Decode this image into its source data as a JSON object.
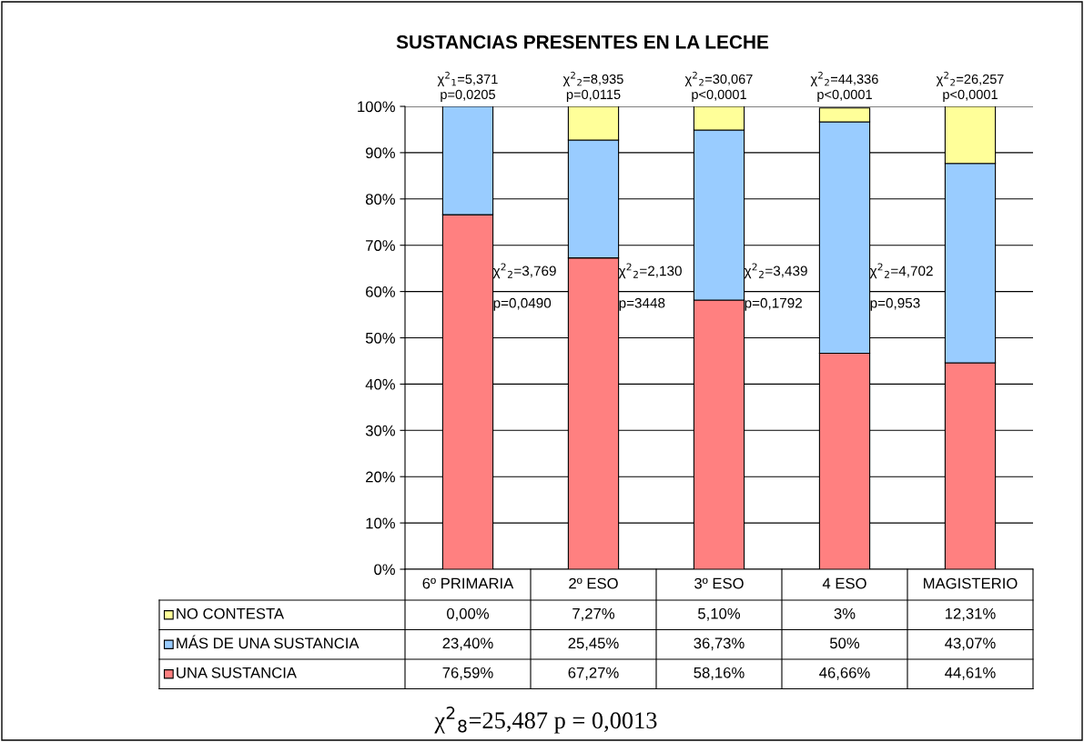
{
  "chart_data": {
    "type": "bar",
    "stacked": true,
    "title": "SUSTANCIAS PRESENTES EN LA LECHE",
    "categories": [
      "6º PRIMARIA",
      "2º ESO",
      "3º ESO",
      "4 ESO",
      "MAGISTERIO"
    ],
    "series": [
      {
        "name": "UNA SUSTANCIA",
        "color": "#ff8080",
        "values": [
          76.59,
          67.27,
          58.16,
          46.66,
          44.61
        ],
        "value_labels": [
          "76,59%",
          "67,27%",
          "58,16%",
          "46,66%",
          "44,61%"
        ]
      },
      {
        "name": "MÁS DE UNA SUSTANCIA",
        "color": "#99ccff",
        "values": [
          23.4,
          25.45,
          36.73,
          50,
          43.07
        ],
        "value_labels": [
          "23,40%",
          "25,45%",
          "36,73%",
          "50%",
          "43,07%"
        ]
      },
      {
        "name": "NO CONTESTA",
        "color": "#ffff99",
        "values": [
          0,
          7.27,
          5.1,
          3,
          12.31
        ],
        "value_labels": [
          "0,00%",
          "7,27%",
          "5,10%",
          "3%",
          "12,31%"
        ]
      }
    ],
    "ylim": [
      0,
      100
    ],
    "yticks": [
      {
        "value": 0,
        "label": "0%"
      },
      {
        "value": 10,
        "label": "10%"
      },
      {
        "value": 20,
        "label": "20%"
      },
      {
        "value": 30,
        "label": "30%"
      },
      {
        "value": 40,
        "label": "40%"
      },
      {
        "value": 50,
        "label": "50%"
      },
      {
        "value": 60,
        "label": "60%"
      },
      {
        "value": 70,
        "label": "70%"
      },
      {
        "value": 80,
        "label": "80%"
      },
      {
        "value": 90,
        "label": "90%"
      },
      {
        "value": 100,
        "label": "100%"
      }
    ],
    "grid": "y",
    "legend": "bottom left",
    "annotations": [
      "χ$^{2}$$_{1}$=5,371\np=0,0205",
      "χ$^{2}$$_{2}$=8,935\np=0,0115",
      "χ$^{2}$$_{2}$=30,067\np<0,0001",
      "χ$^{2}$$_{2}$=44,336\np<0,0001",
      "χ$^{2}$$_{2}$=26,257\np<0,0001",
      "χ$^{2}$$_{2}$=3,769\n\np=0,0490",
      "χ$^{2}$$_{2}$=2,130\n\np=3448",
      "χ$^{2}$$_{2}$=3,439\n\np=0,1792",
      "χ$^{2}$$_{2}$=4,702\n\np=0,953",
      "χ$^{2}$$_{8}$=25,487 p = 0,0013"
    ]
  }
}
